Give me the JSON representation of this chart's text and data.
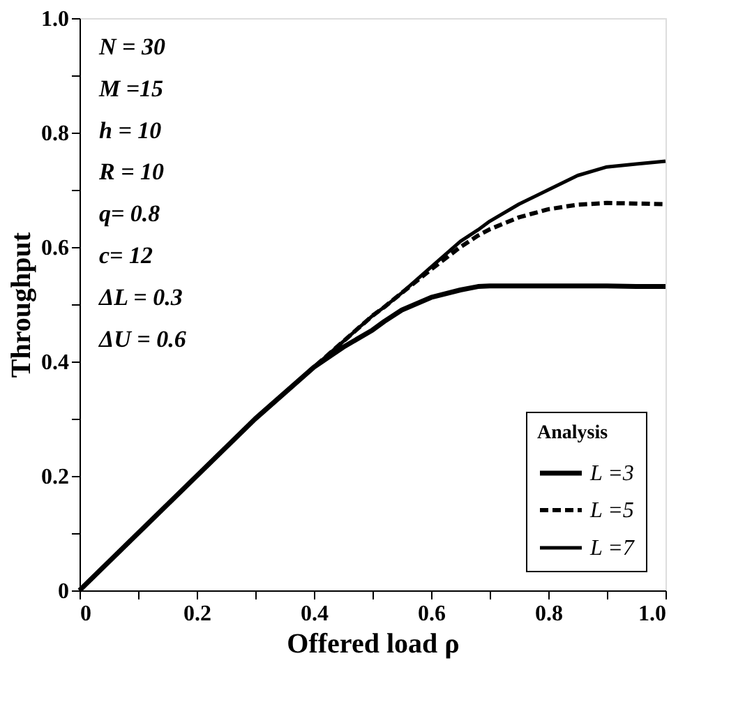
{
  "chart_data": {
    "type": "line",
    "xlabel": "Offered load  ρ",
    "ylabel": "Throughput",
    "legend_title": "Analysis",
    "legend": "bottom right",
    "grid": false,
    "marker": "none",
    "x": [
      0,
      0.1,
      0.2,
      0.3,
      0.4,
      0.45,
      0.5,
      0.52,
      0.55,
      0.6,
      0.65,
      0.68,
      0.7,
      0.75,
      0.8,
      0.85,
      0.9,
      0.95,
      1.0
    ],
    "series": [
      {
        "name": "L =3",
        "color": "#000000",
        "line_style": "solid",
        "values": [
          0,
          0.1,
          0.2,
          0.3,
          0.39,
          0.425,
          0.455,
          0.47,
          0.49,
          0.512,
          0.525,
          0.531,
          0.532,
          0.532,
          0.532,
          0.532,
          0.532,
          0.531,
          0.531
        ]
      },
      {
        "name": "L =5",
        "color": "#000000",
        "line_style": "dashed",
        "values": [
          0,
          0.1,
          0.2,
          0.3,
          0.39,
          0.435,
          0.48,
          0.495,
          0.52,
          0.561,
          0.6,
          0.62,
          0.631,
          0.652,
          0.666,
          0.674,
          0.677,
          0.676,
          0.675
        ]
      },
      {
        "name": "L =7",
        "color": "#000000",
        "line_style": "solid",
        "values": [
          0,
          0.1,
          0.2,
          0.3,
          0.39,
          0.435,
          0.48,
          0.495,
          0.52,
          0.565,
          0.61,
          0.63,
          0.645,
          0.675,
          0.7,
          0.725,
          0.74,
          0.745,
          0.75
        ]
      }
    ],
    "xlim": [
      0,
      1.0
    ],
    "ylim": [
      0,
      1.0
    ],
    "xticks": [
      0,
      {
        "value": 0.1,
        "label": null
      },
      0.2,
      {
        "value": 0.3,
        "label": null
      },
      0.4,
      {
        "value": 0.5,
        "label": null
      },
      0.6,
      {
        "value": 0.7,
        "label": null
      },
      0.8,
      {
        "value": 0.9,
        "label": null
      },
      {
        "value": 1.0,
        "label": "1.0"
      }
    ],
    "yticks": [
      0,
      {
        "value": 0.1,
        "label": null
      },
      0.2,
      {
        "value": 0.3,
        "label": null
      },
      0.4,
      {
        "value": 0.5,
        "label": null
      },
      0.6,
      {
        "value": 0.7,
        "label": null
      },
      0.8,
      {
        "value": 0.9,
        "label": null
      },
      {
        "value": 1.0,
        "label": "1.0"
      }
    ],
    "annotations": [
      "N = 30",
      "M =15",
      "h = 10",
      "R = 10",
      "q= 0.8",
      "c= 12",
      "ΔL = 0.3",
      "ΔU = 0.6"
    ]
  }
}
